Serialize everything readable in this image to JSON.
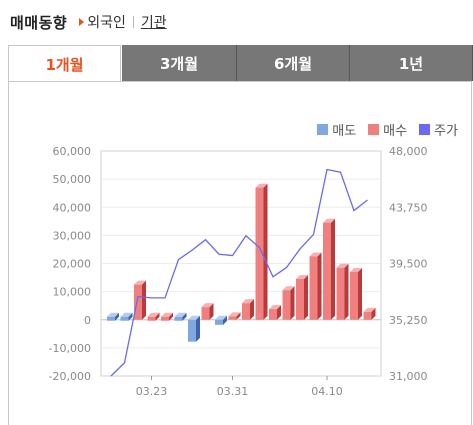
{
  "header": {
    "title": "매매동향",
    "link_foreign": "외국인",
    "link_inst": "기관"
  },
  "tabs": [
    {
      "label": "1개월",
      "active": true
    },
    {
      "label": "3개월",
      "active": false
    },
    {
      "label": "6개월",
      "active": false
    },
    {
      "label": "1년",
      "active": false
    }
  ],
  "colors": {
    "sell": "#7fa7e0",
    "buy": "#f08080",
    "price": "#6a6af0"
  },
  "chart_data": {
    "type": "bar",
    "legend": [
      "매도",
      "매수",
      "주가"
    ],
    "x_ticks": [
      "03.23",
      "03.31",
      "04.10"
    ],
    "x_tick_index": [
      3,
      9,
      16
    ],
    "left_axis": {
      "min": -20000,
      "max": 60000,
      "ticks": [
        "-20,000",
        "-10,000",
        "0",
        "10,000",
        "20,000",
        "30,000",
        "40,000",
        "50,000",
        "60,000"
      ]
    },
    "right_axis": {
      "min": 31000,
      "max": 48000,
      "ticks": [
        "31,000",
        "35,250",
        "39,500",
        "43,750",
        "48,000"
      ]
    },
    "series": [
      {
        "name": "매수/매도",
        "values": [
          -1000,
          -800,
          12500,
          400,
          700,
          -500,
          -7800,
          4500,
          -1800,
          1200,
          5900,
          47000,
          3800,
          10500,
          14500,
          22500,
          34500,
          18500,
          17000,
          2800
        ]
      },
      {
        "name": "주가",
        "values": [
          31000,
          32000,
          37000,
          36900,
          36900,
          39800,
          40500,
          41300,
          40200,
          40100,
          41600,
          40700,
          38500,
          39200,
          40600,
          41700,
          46600,
          46400,
          43500,
          44300
        ]
      }
    ]
  }
}
